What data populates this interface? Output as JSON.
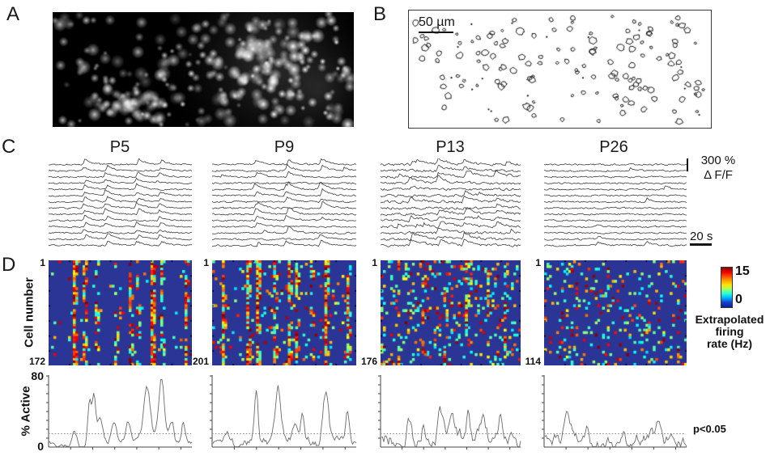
{
  "figure": {
    "panel_a": {
      "label": "A"
    },
    "panel_b": {
      "label": "B",
      "scale_bar_label": "50 µm"
    },
    "panel_c": {
      "label": "C",
      "ages": [
        "P5",
        "P9",
        "P13",
        "P26"
      ],
      "amplitude_scale_value": "300 %",
      "amplitude_scale_unit": "Δ F/F",
      "time_scale_label": "20 s"
    },
    "panel_d": {
      "label": "D",
      "y_axis_label": "Cell number",
      "first_cell_label": "1",
      "cell_counts": [
        "172",
        "201",
        "176",
        "114"
      ],
      "colorbar": {
        "max": "15",
        "min": "0",
        "label_line1": "Extrapolated",
        "label_line2": "firing",
        "label_line3": "rate (Hz)"
      },
      "percent_active": {
        "y_label": "% Active",
        "y_max": "80",
        "y_min": "0",
        "significance_label": "p<0.05"
      }
    }
  }
}
